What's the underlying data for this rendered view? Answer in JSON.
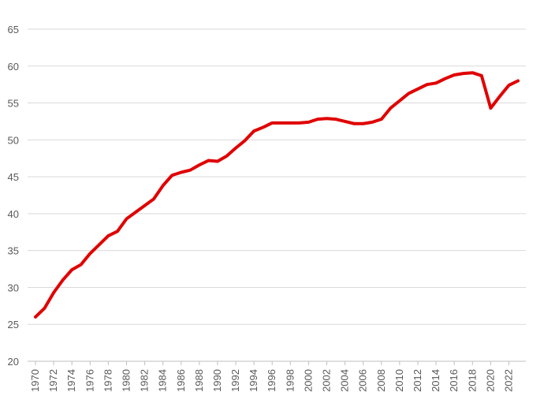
{
  "chart_data": {
    "type": "line",
    "title": "",
    "xlabel": "",
    "ylabel": "",
    "ylim": [
      20,
      65
    ],
    "yticks": [
      20,
      25,
      30,
      35,
      40,
      45,
      50,
      55,
      60,
      65
    ],
    "xlim": [
      1970,
      2023
    ],
    "xticks": [
      1970,
      1972,
      1974,
      1976,
      1978,
      1980,
      1982,
      1984,
      1986,
      1988,
      1990,
      1992,
      1994,
      1996,
      1998,
      2000,
      2002,
      2004,
      2006,
      2008,
      2010,
      2012,
      2014,
      2016,
      2018,
      2020,
      2022
    ],
    "grid": true,
    "legend": "none",
    "series": [
      {
        "color": "#e00000",
        "x": [
          1970,
          1971,
          1972,
          1973,
          1974,
          1975,
          1976,
          1977,
          1978,
          1979,
          1980,
          1981,
          1982,
          1983,
          1984,
          1985,
          1986,
          1987,
          1988,
          1989,
          1990,
          1991,
          1992,
          1993,
          1994,
          1995,
          1996,
          1997,
          1998,
          1999,
          2000,
          2001,
          2002,
          2003,
          2004,
          2005,
          2006,
          2007,
          2008,
          2009,
          2010,
          2011,
          2012,
          2013,
          2014,
          2015,
          2016,
          2017,
          2018,
          2019,
          2020,
          2021,
          2022,
          2023
        ],
        "values": [
          26.0,
          27.2,
          29.3,
          31.0,
          32.4,
          33.1,
          34.6,
          35.8,
          37.0,
          37.6,
          39.3,
          40.2,
          41.1,
          42.0,
          43.8,
          45.2,
          45.6,
          45.9,
          46.6,
          47.2,
          47.1,
          47.8,
          48.9,
          49.9,
          51.2,
          51.7,
          52.3,
          52.3,
          52.3,
          52.3,
          52.4,
          52.8,
          52.9,
          52.8,
          52.5,
          52.2,
          52.2,
          52.4,
          52.8,
          54.3,
          55.3,
          56.3,
          56.9,
          57.5,
          57.7,
          58.3,
          58.8,
          59.0,
          59.1,
          58.7,
          54.3,
          55.9,
          57.4,
          58.0
        ]
      }
    ]
  }
}
